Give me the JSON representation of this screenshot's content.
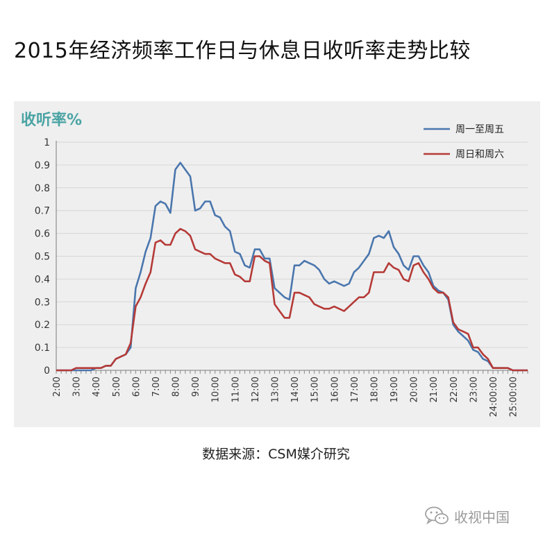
{
  "page": {
    "title": "2015年经济频率工作日与休息日收听率走势比较",
    "source": "数据来源：CSM媒介研究",
    "watermark": "收视中国",
    "watermark_icon": "wechat-icon"
  },
  "chart_data": {
    "type": "line",
    "ylabel": "收听率%",
    "xlabel": "",
    "ylim": [
      0,
      1
    ],
    "yticks": [
      "0",
      "0.1",
      "0.2",
      "0.3",
      "0.4",
      "0.5",
      "0.6",
      "0.7",
      "0.8",
      "0.9",
      "1"
    ],
    "x_range": [
      2.0,
      25.75
    ],
    "xtick_labels": [
      "2:00",
      "3:00",
      "4:00",
      "5:00",
      "6:00",
      "7:00",
      "8:00",
      "9:00",
      "10:00",
      "11:00",
      "12:00",
      "13:00",
      "14:00",
      "15:00",
      "16:00",
      "17:00",
      "18:00",
      "19:00",
      "20:00",
      "21:00",
      "22:00",
      "23:00",
      "24:00:00",
      "25:00:00"
    ],
    "grid": true,
    "legend_position": "top-right",
    "colors": {
      "weekday": "#4a76ad",
      "weekend": "#b53a37",
      "ylabel": "#4aa3a3"
    },
    "x": [
      2.0,
      2.25,
      2.5,
      2.75,
      3.0,
      3.25,
      3.5,
      3.75,
      4.0,
      4.25,
      4.5,
      4.75,
      5.0,
      5.25,
      5.5,
      5.75,
      6.0,
      6.25,
      6.5,
      6.75,
      7.0,
      7.25,
      7.5,
      7.75,
      8.0,
      8.25,
      8.5,
      8.75,
      9.0,
      9.25,
      9.5,
      9.75,
      10.0,
      10.25,
      10.5,
      10.75,
      11.0,
      11.25,
      11.5,
      11.75,
      12.0,
      12.25,
      12.5,
      12.75,
      13.0,
      13.25,
      13.5,
      13.75,
      14.0,
      14.25,
      14.5,
      14.75,
      15.0,
      15.25,
      15.5,
      15.75,
      16.0,
      16.25,
      16.5,
      16.75,
      17.0,
      17.25,
      17.5,
      17.75,
      18.0,
      18.25,
      18.5,
      18.75,
      19.0,
      19.25,
      19.5,
      19.75,
      20.0,
      20.25,
      20.5,
      20.75,
      21.0,
      21.25,
      21.5,
      21.75,
      22.0,
      22.25,
      22.5,
      22.75,
      23.0,
      23.25,
      23.5,
      23.75,
      24.0,
      24.25,
      24.5,
      24.75,
      25.0,
      25.25,
      25.5,
      25.75
    ],
    "series": [
      {
        "name": "周一至周五",
        "key": "weekday",
        "values": [
          0.0,
          0.0,
          0.0,
          0.0,
          0.0,
          0.0,
          0.0,
          0.0,
          0.01,
          0.01,
          0.02,
          0.02,
          0.05,
          0.06,
          0.07,
          0.1,
          0.36,
          0.43,
          0.52,
          0.58,
          0.72,
          0.74,
          0.73,
          0.69,
          0.88,
          0.91,
          0.88,
          0.85,
          0.7,
          0.71,
          0.74,
          0.74,
          0.68,
          0.67,
          0.63,
          0.61,
          0.52,
          0.51,
          0.46,
          0.45,
          0.53,
          0.53,
          0.49,
          0.49,
          0.36,
          0.34,
          0.32,
          0.31,
          0.46,
          0.46,
          0.48,
          0.47,
          0.46,
          0.44,
          0.4,
          0.38,
          0.39,
          0.38,
          0.37,
          0.38,
          0.43,
          0.45,
          0.48,
          0.51,
          0.58,
          0.59,
          0.58,
          0.61,
          0.54,
          0.51,
          0.46,
          0.44,
          0.5,
          0.5,
          0.46,
          0.43,
          0.37,
          0.35,
          0.34,
          0.31,
          0.2,
          0.17,
          0.15,
          0.13,
          0.09,
          0.08,
          0.05,
          0.04,
          0.01,
          0.01,
          0.01,
          0.01,
          0.0,
          0.0,
          0.0,
          0.0
        ]
      },
      {
        "name": "周日和周六",
        "key": "weekend",
        "values": [
          0.0,
          0.0,
          0.0,
          0.0,
          0.01,
          0.01,
          0.01,
          0.01,
          0.01,
          0.01,
          0.02,
          0.02,
          0.05,
          0.06,
          0.07,
          0.12,
          0.28,
          0.32,
          0.38,
          0.43,
          0.56,
          0.57,
          0.55,
          0.55,
          0.6,
          0.62,
          0.61,
          0.59,
          0.53,
          0.52,
          0.51,
          0.51,
          0.49,
          0.48,
          0.47,
          0.47,
          0.42,
          0.41,
          0.39,
          0.39,
          0.5,
          0.5,
          0.48,
          0.47,
          0.29,
          0.26,
          0.23,
          0.23,
          0.34,
          0.34,
          0.33,
          0.32,
          0.29,
          0.28,
          0.27,
          0.27,
          0.28,
          0.27,
          0.26,
          0.28,
          0.3,
          0.32,
          0.32,
          0.34,
          0.43,
          0.43,
          0.43,
          0.47,
          0.45,
          0.44,
          0.4,
          0.39,
          0.46,
          0.47,
          0.43,
          0.4,
          0.36,
          0.34,
          0.34,
          0.32,
          0.21,
          0.18,
          0.17,
          0.16,
          0.1,
          0.1,
          0.07,
          0.05,
          0.01,
          0.01,
          0.01,
          0.01,
          0.0,
          0.0,
          0.0,
          0.0
        ]
      }
    ]
  }
}
